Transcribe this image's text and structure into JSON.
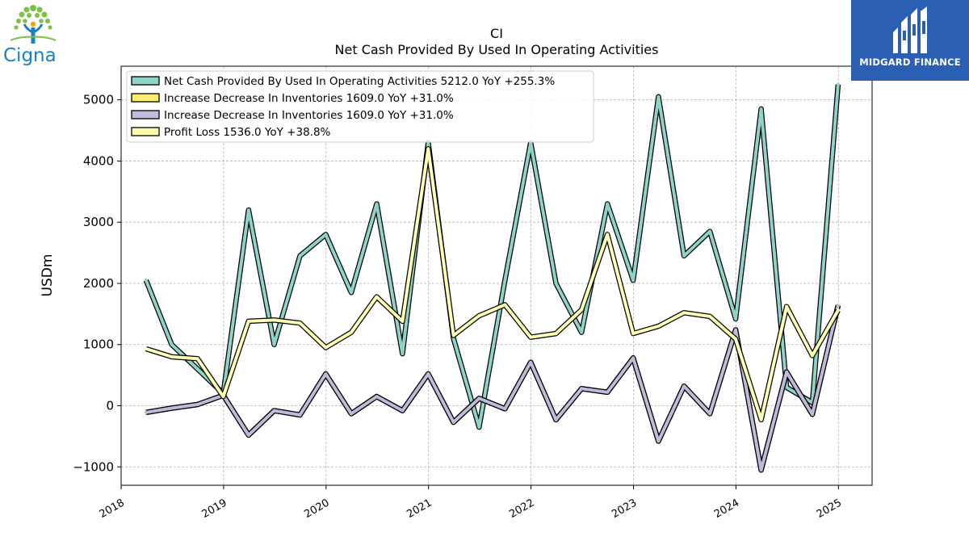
{
  "logos": {
    "left_brand": "Cigna",
    "right_brand": "MIDGARD FINANCE",
    "left_icon": "tree-person-icon",
    "right_icon": "building-bars-icon"
  },
  "chart_data": {
    "type": "line",
    "title": "CI",
    "subtitle": "Net Cash Provided By Used In Operating Activities",
    "xlabel": "",
    "ylabel": "USDm",
    "xlim": [
      "2018-01",
      "2025-05"
    ],
    "ylim": [
      -1300,
      5550
    ],
    "grid": true,
    "legend_position": "top-left",
    "x_ticks": [
      "2018",
      "2019",
      "2020",
      "2021",
      "2022",
      "2023",
      "2024",
      "2025"
    ],
    "y_ticks": [
      -1000,
      0,
      1000,
      2000,
      3000,
      4000,
      5000
    ],
    "y_tick_labels": [
      "−1000",
      "0",
      "1000",
      "2000",
      "3000",
      "4000",
      "5000"
    ],
    "x": [
      "2018-03-31",
      "2018-06-30",
      "2018-09-30",
      "2018-12-31",
      "2019-03-31",
      "2019-06-30",
      "2019-09-30",
      "2019-12-31",
      "2020-03-31",
      "2020-06-30",
      "2020-09-30",
      "2020-12-31",
      "2021-03-31",
      "2021-06-30",
      "2021-09-30",
      "2021-12-31",
      "2022-03-31",
      "2022-06-30",
      "2022-09-30",
      "2022-12-31",
      "2023-03-31",
      "2023-06-30",
      "2023-09-30",
      "2023-12-31",
      "2024-03-31",
      "2024-06-30",
      "2024-09-30",
      "2024-12-31"
    ],
    "series": [
      {
        "name": "Net Cash Provided By Used In Operating Activities  5212.0 YoY +255.3%",
        "color": "#8dd3c7",
        "values": [
          2050,
          1000,
          600,
          200,
          3200,
          1000,
          2450,
          2800,
          1850,
          3300,
          850,
          4300,
          1100,
          -350,
          2050,
          4300,
          2000,
          1200,
          3300,
          2050,
          5050,
          2450,
          2850,
          1420,
          4850,
          300,
          50,
          5250
        ]
      },
      {
        "name": "Increase Decrease In Inventories  1609.0 YoY +31.0%",
        "color": "#ffed6f",
        "values": [
          -110,
          -40,
          20,
          170,
          -480,
          -80,
          -150,
          520,
          -130,
          150,
          -80,
          520,
          -270,
          120,
          -50,
          710,
          -230,
          280,
          220,
          780,
          -580,
          320,
          -130,
          1240,
          -1050,
          550,
          -140,
          1640
        ]
      },
      {
        "name": "Increase Decrease In Inventories  1609.0 YoY +31.0%",
        "color": "#bebada",
        "values": [
          -110,
          -40,
          20,
          170,
          -480,
          -80,
          -150,
          520,
          -130,
          150,
          -80,
          520,
          -270,
          120,
          -50,
          710,
          -230,
          280,
          220,
          780,
          -580,
          320,
          -130,
          1240,
          -1050,
          550,
          -140,
          1640
        ]
      },
      {
        "name": "Profit Loss  1536.0 YoY +38.8%",
        "color": "#ffffb3",
        "values": [
          930,
          800,
          770,
          150,
          1380,
          1400,
          1350,
          950,
          1200,
          1780,
          1380,
          4200,
          1150,
          1470,
          1650,
          1120,
          1180,
          1570,
          2800,
          1180,
          1300,
          1520,
          1460,
          1090,
          -230,
          1620,
          820,
          1560
        ]
      }
    ]
  }
}
